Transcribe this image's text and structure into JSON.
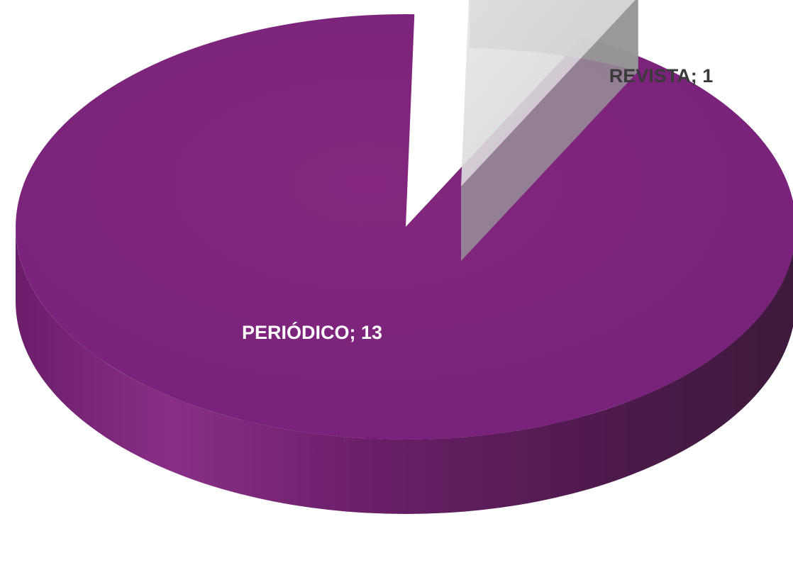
{
  "chart_data": {
    "type": "pie",
    "style": "3d-exploded",
    "title": "",
    "legend": "none",
    "slices": [
      {
        "label": "PERIÓDICO",
        "value": 13,
        "color": "#7b237a"
      },
      {
        "label": "REVISTA",
        "value": 1,
        "color": "#d9d9d9"
      }
    ],
    "data_labels": [
      {
        "text": "PERIÓDICO; 13",
        "color": "#ffffff"
      },
      {
        "text": "REVISTA; 1",
        "color": "#3a3a3a"
      }
    ]
  }
}
